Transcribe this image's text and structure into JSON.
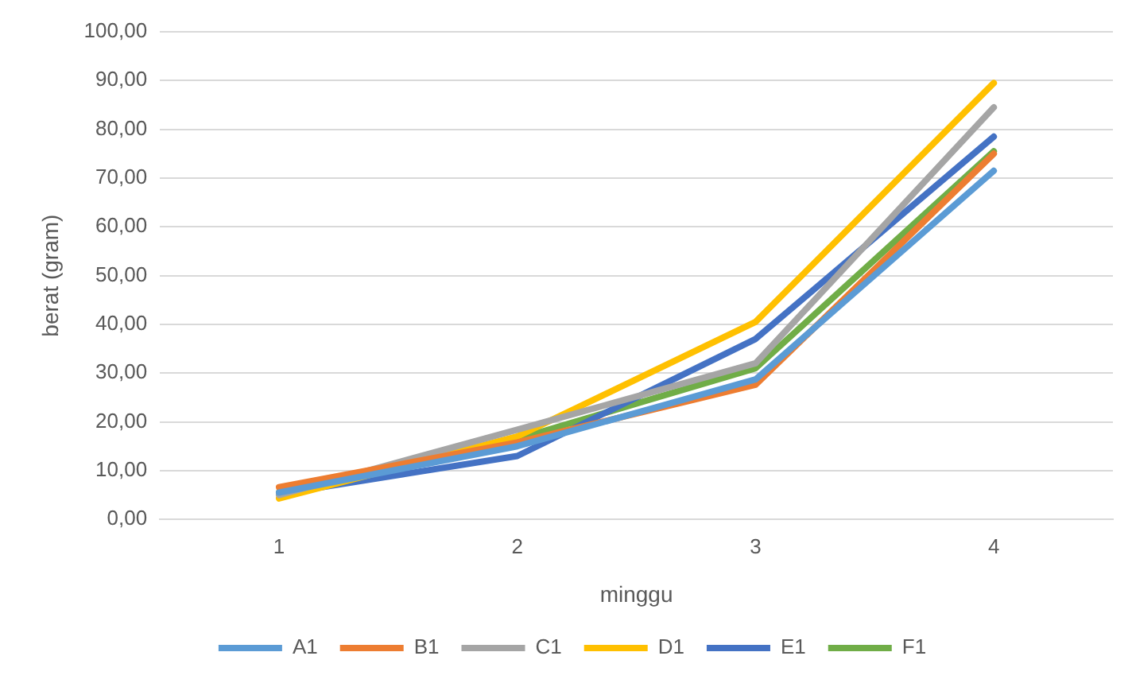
{
  "chart_data": {
    "type": "line",
    "xlabel": "minggu",
    "ylabel": "berat (gram)",
    "categories": [
      "1",
      "2",
      "3",
      "4"
    ],
    "series": [
      {
        "name": "A1",
        "color": "#5b9bd5",
        "values": [
          5.5,
          15,
          28.7,
          71.5
        ]
      },
      {
        "name": "B1",
        "color": "#ed7d31",
        "values": [
          6.6,
          15.8,
          27.6,
          75
        ]
      },
      {
        "name": "C1",
        "color": "#a5a5a5",
        "values": [
          5,
          18.4,
          32,
          84.5
        ]
      },
      {
        "name": "D1",
        "color": "#ffc000",
        "values": [
          4.3,
          17,
          40.5,
          89.5
        ]
      },
      {
        "name": "E1",
        "color": "#4472c4",
        "values": [
          5.2,
          13,
          37,
          78.5
        ]
      },
      {
        "name": "F1",
        "color": "#70ad47",
        "values": [
          5.5,
          16.5,
          31,
          75.5
        ]
      }
    ],
    "ylim": [
      0,
      100
    ],
    "yticks": [
      {
        "value": 0,
        "label": "0,00"
      },
      {
        "value": 10,
        "label": "10,00"
      },
      {
        "value": 20,
        "label": "20,00"
      },
      {
        "value": 30,
        "label": "30,00"
      },
      {
        "value": 40,
        "label": "40,00"
      },
      {
        "value": 50,
        "label": "50,00"
      },
      {
        "value": 60,
        "label": "60,00"
      },
      {
        "value": 70,
        "label": "70,00"
      },
      {
        "value": 80,
        "label": "80,00"
      },
      {
        "value": 90,
        "label": "90,00"
      },
      {
        "value": 100,
        "label": "100,00"
      }
    ],
    "grid": "y",
    "legend": "bottom",
    "marker": "none",
    "line_style": "solid"
  }
}
